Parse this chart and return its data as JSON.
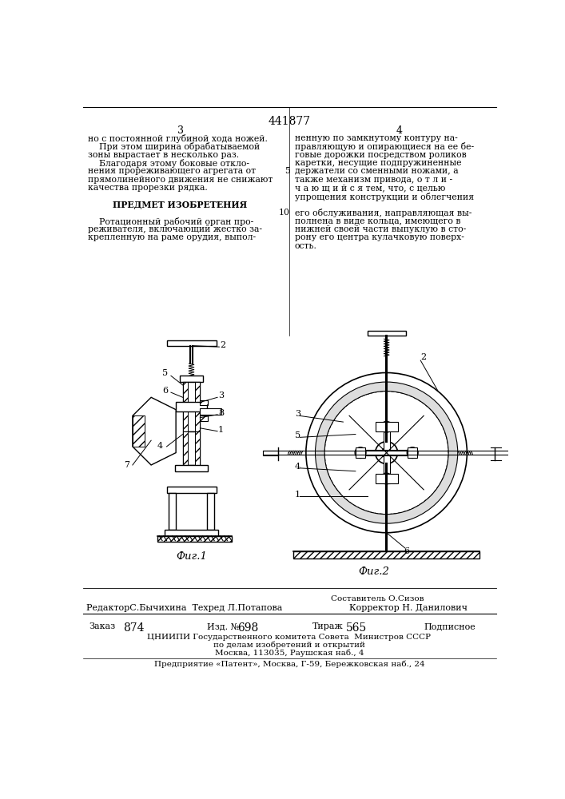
{
  "patent_number": "441877",
  "bg_color": "#ffffff",
  "left_col_lines": [
    "но с постоянной глубиной хода ножей.",
    "    При этом ширина обрабатываемой",
    "зоны вырастает в несколько раз.",
    "    Благодаря этому боковые откло-",
    "нения прореживающего агрегата от",
    "прямолинейного движения не снижают",
    "качества прорезки рядка.",
    "",
    "ПРЕДМЕТ ИЗОБРЕТЕНИЯ",
    "",
    "    Ротационный рабочий орган про-",
    "реживателя, включающий жестко за-",
    "крепленную на раме орудия, выпол-"
  ],
  "right_col_lines": [
    "ненную по замкнутому контуру на-",
    "правляющую и опирающиеся на ее бе-",
    "говые дорожки посредством роликов",
    "каретки, несущие подпружиненные",
    "держатели со сменными ножами, а",
    "также механизм привода, о т л и -",
    "ч а ю щ и й с я тем, что, с целью",
    "упрощения конструкции и облегчения",
    "",
    "его обслуживания, направляющая вы-",
    "полнена в виде кольца, имеющего в",
    "нижней своей части выпуклую в сто-",
    "рону его центра кулачковую поверх-",
    "ость."
  ],
  "line_numbers": {
    "5": 4,
    "10": 9
  },
  "fig1_label": "Фиг.1",
  "fig2_label": "Фиг.2",
  "bottom_text1": "Составитель О.Сизов",
  "bottom_text2_left": "РедакторС.Бычихина  Техред Л.Потапова",
  "bottom_text2_right": "Корректор Н. Данилович",
  "bottom_zakas": "Заказ",
  "bottom_zakas_val": "874",
  "bottom_izd": "Изд. №",
  "bottom_izd_val": "698",
  "bottom_tirazh": "Тираж",
  "bottom_tirazh_val": "565",
  "bottom_podpisnoe": "Подписное",
  "bottom_text4": "ЦНИИПИ Государственного комитета Совета  Министров СССР",
  "bottom_text5": "по делам изобретений и открытий",
  "bottom_text6": "Москва, 113035, Раушская наб., 4",
  "bottom_text7": "Предприятие «Патент», Москва, Г-59, Бережковская наб., 24"
}
